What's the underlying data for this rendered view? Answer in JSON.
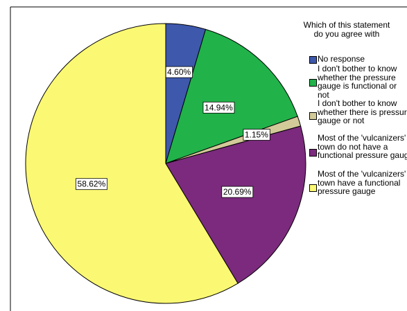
{
  "chart_data": {
    "type": "pie",
    "legend_title": "Which of this statement do you agree with",
    "legend_position": "right",
    "slices": [
      {
        "label": "No response",
        "value": 4.6,
        "value_label": "4.60%",
        "color": "#3E58AC"
      },
      {
        "label": "I don't bother to know whether the pressure gauge is functional or not",
        "value": 14.94,
        "value_label": "14.94%",
        "color": "#21B24A"
      },
      {
        "label": "I don't bother to know whether there is pressure gauge or not",
        "value": 1.15,
        "value_label": "1.15%",
        "color": "#D2CA98"
      },
      {
        "label": "Most of the 'vulcanizers' in town do not have a functional pressure gauge",
        "value": 20.69,
        "value_label": "20.69%",
        "color": "#7B2A7D"
      },
      {
        "label": "Most of the 'vulcanizers' in town have a functional pressure gauge",
        "value": 58.62,
        "value_label": "58.62%",
        "color": "#FBF873"
      }
    ]
  }
}
